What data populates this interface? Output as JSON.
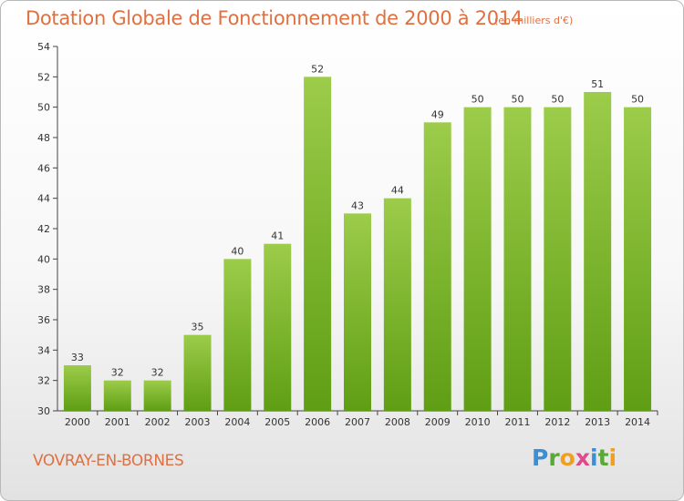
{
  "title": "Dotation Globale de Fonctionnement de 2000 à 2014",
  "unit": "(en milliers d'€)",
  "commune": "VOVRAY-EN-BORNES",
  "logo": {
    "letters": [
      {
        "ch": "P",
        "color": "#3a8fd6"
      },
      {
        "ch": "r",
        "color": "#5aa83a"
      },
      {
        "ch": "o",
        "color": "#f0a020"
      },
      {
        "ch": "x",
        "color": "#e04a8a"
      },
      {
        "ch": "i",
        "color": "#3a8fd6"
      },
      {
        "ch": "t",
        "color": "#5aa83a"
      },
      {
        "ch": "i",
        "color": "#f0a020"
      }
    ]
  },
  "colors": {
    "accent_text": "#e07040",
    "bar_top": "#9ccc4a",
    "bar_bottom": "#5f9e14"
  },
  "chart_data": {
    "type": "bar",
    "categories": [
      "2000",
      "2001",
      "2002",
      "2003",
      "2004",
      "2005",
      "2006",
      "2007",
      "2008",
      "2009",
      "2010",
      "2011",
      "2012",
      "2013",
      "2014"
    ],
    "values": [
      33,
      32,
      32,
      35,
      40,
      41,
      52,
      43,
      44,
      49,
      50,
      50,
      50,
      51,
      50
    ],
    "ylim": [
      30,
      54
    ],
    "yticks": [
      30,
      32,
      34,
      36,
      38,
      40,
      42,
      44,
      46,
      48,
      50,
      52,
      54
    ],
    "grid": false,
    "data_labels": true
  }
}
